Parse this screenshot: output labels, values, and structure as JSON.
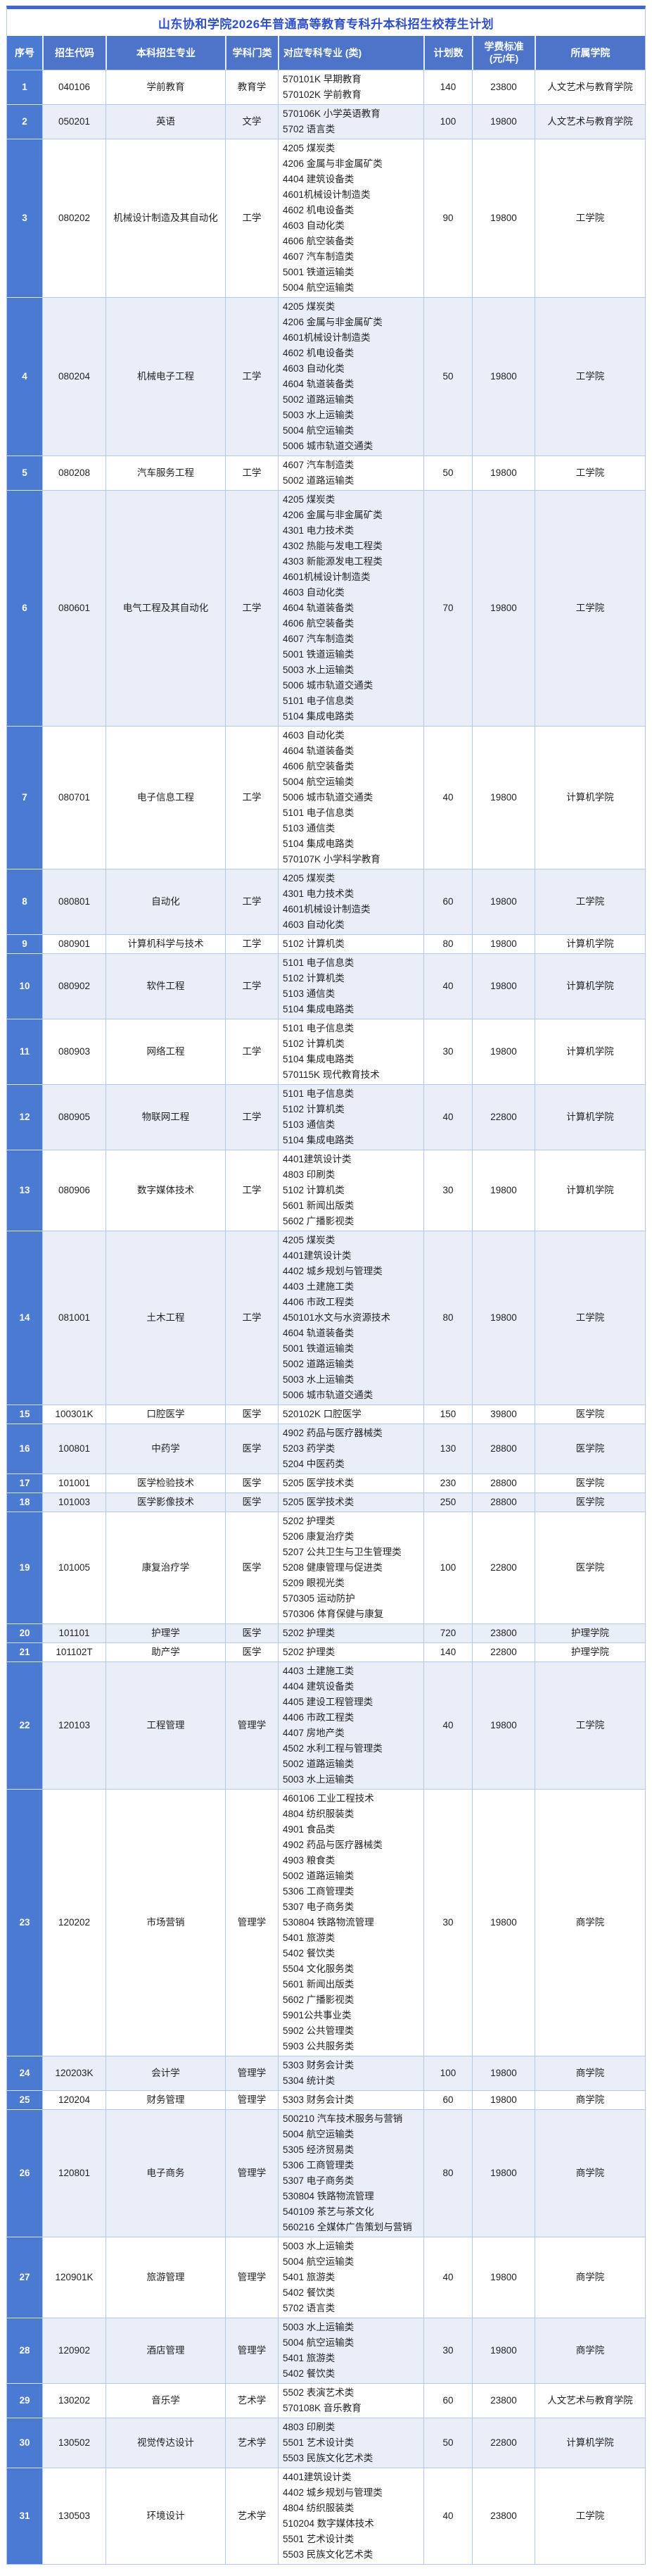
{
  "title": "山东协和学院2026年普通高等教育专科升本科招生校荐生计划",
  "colors": {
    "accent": "#3f68cd",
    "title": "#2f4fc9",
    "header-bg": "#4d74c8",
    "index-bg": "#4b7ad2",
    "alt-bg": "#e9eef9",
    "grid": "#b3c9e8"
  },
  "table": {
    "columns": [
      {
        "label": "序号"
      },
      {
        "label": "招生代码"
      },
      {
        "label": "本科招生专业"
      },
      {
        "label": "学科门类"
      },
      {
        "label": "对应专科专业 (类)"
      },
      {
        "label": "计划数"
      },
      {
        "label": "学费标准",
        "label2": "(元/年)"
      },
      {
        "label": "所属学院"
      }
    ],
    "rows": [
      {
        "no": "1",
        "code": "040106",
        "major": "学前教育",
        "discipline": "教育学",
        "majors": [
          "570101K 早期教育",
          "570102K 学前教育"
        ],
        "plan": "140",
        "tuition": "23800",
        "college": "人文艺术与教育学院"
      },
      {
        "no": "2",
        "code": "050201",
        "major": "英语",
        "discipline": "文学",
        "majors": [
          "570106K 小学英语教育",
          "5702 语言类"
        ],
        "plan": "100",
        "tuition": "19800",
        "college": "人文艺术与教育学院"
      },
      {
        "no": "3",
        "code": "080202",
        "major": "机械设计制造及其自动化",
        "discipline": "工学",
        "majors": [
          "4205 煤炭类",
          "4206 金属与非金属矿类",
          "4404 建筑设备类",
          "4601机械设计制造类",
          "4602 机电设备类",
          "4603 自动化类",
          "4606 航空装备类",
          "4607 汽车制造类",
          "5001 铁道运输类",
          "5004 航空运输类"
        ],
        "plan": "90",
        "tuition": "19800",
        "college": "工学院"
      },
      {
        "no": "4",
        "code": "080204",
        "major": "机械电子工程",
        "discipline": "工学",
        "majors": [
          "4205 煤炭类",
          "4206 金属与非金属矿类",
          "4601机械设计制造类",
          "4602 机电设备类",
          "4603 自动化类",
          "4604 轨道装备类",
          "5002 道路运输类",
          "5003 水上运输类",
          "5004 航空运输类",
          "5006 城市轨道交通类"
        ],
        "plan": "50",
        "tuition": "19800",
        "college": "工学院"
      },
      {
        "no": "5",
        "code": "080208",
        "major": "汽车服务工程",
        "discipline": "工学",
        "majors": [
          "4607 汽车制造类",
          "5002 道路运输类"
        ],
        "plan": "50",
        "tuition": "19800",
        "college": "工学院"
      },
      {
        "no": "6",
        "code": "080601",
        "major": "电气工程及其自动化",
        "discipline": "工学",
        "majors": [
          "4205 煤炭类",
          "4206 金属与非金属矿类",
          "4301 电力技术类",
          "4302 热能与发电工程类",
          "4303 新能源发电工程类",
          "4601机械设计制造类",
          "4603 自动化类",
          "4604 轨道装备类",
          "4606 航空装备类",
          "4607 汽车制造类",
          "5001 铁道运输类",
          "5003 水上运输类",
          "5006 城市轨道交通类",
          "5101 电子信息类",
          "5104 集成电路类"
        ],
        "plan": "70",
        "tuition": "19800",
        "college": "工学院"
      },
      {
        "no": "7",
        "code": "080701",
        "major": "电子信息工程",
        "discipline": "工学",
        "majors": [
          "4603 自动化类",
          "4604 轨道装备类",
          "4606 航空装备类",
          "5004 航空运输类",
          "5006 城市轨道交通类",
          "5101 电子信息类",
          "5103 通信类",
          "5104 集成电路类",
          "570107K 小学科学教育"
        ],
        "plan": "40",
        "tuition": "19800",
        "college": "计算机学院"
      },
      {
        "no": "8",
        "code": "080801",
        "major": "自动化",
        "discipline": "工学",
        "majors": [
          "4205 煤炭类",
          "4301 电力技术类",
          "4601机械设计制造类",
          "4603 自动化类"
        ],
        "plan": "60",
        "tuition": "19800",
        "college": "工学院"
      },
      {
        "no": "9",
        "code": "080901",
        "major": "计算机科学与技术",
        "discipline": "工学",
        "majors": [
          "5102 计算机类"
        ],
        "plan": "80",
        "tuition": "19800",
        "college": "计算机学院"
      },
      {
        "no": "10",
        "code": "080902",
        "major": "软件工程",
        "discipline": "工学",
        "majors": [
          "5101 电子信息类",
          "5102 计算机类",
          "5103 通信类",
          "5104 集成电路类"
        ],
        "plan": "40",
        "tuition": "19800",
        "college": "计算机学院"
      },
      {
        "no": "11",
        "code": "080903",
        "major": "网络工程",
        "discipline": "工学",
        "majors": [
          "5101 电子信息类",
          "5102 计算机类",
          "5104 集成电路类",
          "570115K 现代教育技术"
        ],
        "plan": "30",
        "tuition": "19800",
        "college": "计算机学院"
      },
      {
        "no": "12",
        "code": "080905",
        "major": "物联网工程",
        "discipline": "工学",
        "majors": [
          "5101 电子信息类",
          "5102 计算机类",
          "5103 通信类",
          "5104 集成电路类"
        ],
        "plan": "40",
        "tuition": "22800",
        "college": "计算机学院"
      },
      {
        "no": "13",
        "code": "080906",
        "major": "数字媒体技术",
        "discipline": "工学",
        "majors": [
          "4401建筑设计类",
          "4803 印刷类",
          "5102 计算机类",
          "5601 新闻出版类",
          "5602 广播影视类"
        ],
        "plan": "30",
        "tuition": "19800",
        "college": "计算机学院"
      },
      {
        "no": "14",
        "code": "081001",
        "major": "土木工程",
        "discipline": "工学",
        "majors": [
          "4205 煤炭类",
          "4401建筑设计类",
          "4402 城乡规划与管理类",
          "4403 土建施工类",
          "4406 市政工程类",
          "450101水文与水资源技术",
          "4604 轨道装备类",
          "5001 铁道运输类",
          "5002 道路运输类",
          "5003 水上运输类",
          "5006 城市轨道交通类"
        ],
        "plan": "80",
        "tuition": "19800",
        "college": "工学院"
      },
      {
        "no": "15",
        "code": "100301K",
        "major": "口腔医学",
        "discipline": "医学",
        "majors": [
          "520102K 口腔医学"
        ],
        "plan": "150",
        "tuition": "39800",
        "college": "医学院"
      },
      {
        "no": "16",
        "code": "100801",
        "major": "中药学",
        "discipline": "医学",
        "majors": [
          "4902 药品与医疗器械类",
          "5203 药学类",
          "5204 中医药类"
        ],
        "plan": "130",
        "tuition": "28800",
        "college": "医学院"
      },
      {
        "no": "17",
        "code": "101001",
        "major": "医学检验技术",
        "discipline": "医学",
        "majors": [
          "5205 医学技术类"
        ],
        "plan": "230",
        "tuition": "28800",
        "college": "医学院"
      },
      {
        "no": "18",
        "code": "101003",
        "major": "医学影像技术",
        "discipline": "医学",
        "majors": [
          "5205 医学技术类"
        ],
        "plan": "250",
        "tuition": "28800",
        "college": "医学院"
      },
      {
        "no": "19",
        "code": "101005",
        "major": "康复治疗学",
        "discipline": "医学",
        "majors": [
          "5202 护理类",
          "5206 康复治疗类",
          "5207 公共卫生与卫生管理类",
          "5208 健康管理与促进类",
          "5209 眼视光类",
          "570305 运动防护",
          "570306 体育保健与康复"
        ],
        "plan": "100",
        "tuition": "22800",
        "college": "医学院"
      },
      {
        "no": "20",
        "code": "101101",
        "major": "护理学",
        "discipline": "医学",
        "majors": [
          "5202 护理类"
        ],
        "plan": "720",
        "tuition": "23800",
        "college": "护理学院"
      },
      {
        "no": "21",
        "code": "101102T",
        "major": "助产学",
        "discipline": "医学",
        "majors": [
          "5202 护理类"
        ],
        "plan": "140",
        "tuition": "22800",
        "college": "护理学院"
      },
      {
        "no": "22",
        "code": "120103",
        "major": "工程管理",
        "discipline": "管理学",
        "majors": [
          "4403 土建施工类",
          "4404 建筑设备类",
          "4405 建设工程管理类",
          "4406 市政工程类",
          "4407 房地产类",
          "4502 水利工程与管理类",
          "5002 道路运输类",
          "5003 水上运输类"
        ],
        "plan": "40",
        "tuition": "19800",
        "college": "工学院"
      },
      {
        "no": "23",
        "code": "120202",
        "major": "市场营销",
        "discipline": "管理学",
        "majors": [
          "460106 工业工程技术",
          "4804 纺织服装类",
          "4901 食品类",
          "4902 药品与医疗器械类",
          "4903 粮食类",
          "5002 道路运输类",
          "5306 工商管理类",
          "5307 电子商务类",
          "530804 铁路物流管理",
          "5401 旅游类",
          "5402 餐饮类",
          "5504 文化服务类",
          "5601 新闻出版类",
          "5602 广播影视类",
          "5901公共事业类",
          "5902 公共管理类",
          "5903 公共服务类"
        ],
        "plan": "30",
        "tuition": "19800",
        "college": "商学院"
      },
      {
        "no": "24",
        "code": "120203K",
        "major": "会计学",
        "discipline": "管理学",
        "majors": [
          "5303 财务会计类",
          "5304 统计类"
        ],
        "plan": "100",
        "tuition": "19800",
        "college": "商学院"
      },
      {
        "no": "25",
        "code": "120204",
        "major": "财务管理",
        "discipline": "管理学",
        "majors": [
          "5303 财务会计类"
        ],
        "plan": "60",
        "tuition": "19800",
        "college": "商学院"
      },
      {
        "no": "26",
        "code": "120801",
        "major": "电子商务",
        "discipline": "管理学",
        "majors": [
          "500210 汽车技术服务与营销",
          "5004 航空运输类",
          "5305 经济贸易类",
          "5306 工商管理类",
          "5307 电子商务类",
          "530804 铁路物流管理",
          "540109 茶艺与茶文化",
          "560216 全媒体广告策划与营销"
        ],
        "plan": "80",
        "tuition": "19800",
        "college": "商学院"
      },
      {
        "no": "27",
        "code": "120901K",
        "major": "旅游管理",
        "discipline": "管理学",
        "majors": [
          "5003 水上运输类",
          "5004 航空运输类",
          "5401 旅游类",
          "5402 餐饮类",
          "5702 语言类"
        ],
        "plan": "40",
        "tuition": "19800",
        "college": "商学院"
      },
      {
        "no": "28",
        "code": "120902",
        "major": "酒店管理",
        "discipline": "管理学",
        "majors": [
          "5003 水上运输类",
          "5004 航空运输类",
          "5401 旅游类",
          "5402 餐饮类"
        ],
        "plan": "30",
        "tuition": "19800",
        "college": "商学院"
      },
      {
        "no": "29",
        "code": "130202",
        "major": "音乐学",
        "discipline": "艺术学",
        "majors": [
          "5502 表演艺术类",
          "570108K 音乐教育"
        ],
        "plan": "60",
        "tuition": "23800",
        "college": "人文艺术与教育学院"
      },
      {
        "no": "30",
        "code": "130502",
        "major": "视觉传达设计",
        "discipline": "艺术学",
        "majors": [
          "4803 印刷类",
          "5501 艺术设计类",
          "5503 民族文化艺术类"
        ],
        "plan": "50",
        "tuition": "22800",
        "college": "计算机学院"
      },
      {
        "no": "31",
        "code": "130503",
        "major": "环境设计",
        "discipline": "艺术学",
        "majors": [
          "4401建筑设计类",
          "4402 城乡规划与管理类",
          "4804 纺织服装类",
          "510204 数字媒体技术",
          "5501 艺术设计类",
          "5503 民族文化艺术类"
        ],
        "plan": "40",
        "tuition": "23800",
        "college": "工学院"
      }
    ]
  }
}
